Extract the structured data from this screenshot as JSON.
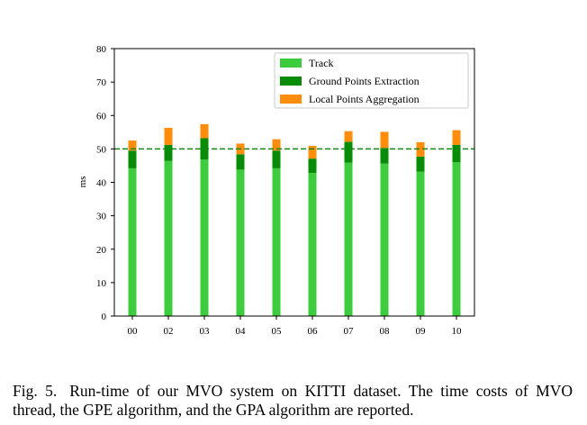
{
  "chart_data": {
    "type": "bar",
    "stacked": true,
    "categories": [
      "00",
      "02",
      "03",
      "04",
      "05",
      "06",
      "07",
      "08",
      "09",
      "10"
    ],
    "series": [
      {
        "name": "Track",
        "color": "#3dcc3d",
        "values": [
          44.2,
          46.4,
          46.8,
          43.8,
          44.2,
          42.8,
          45.9,
          45.6,
          43.2,
          46.0
        ]
      },
      {
        "name": "Ground Points Extraction",
        "color": "#078c07",
        "values": [
          5.3,
          4.8,
          6.4,
          4.6,
          5.3,
          4.3,
          6.2,
          4.7,
          4.5,
          5.2
        ]
      },
      {
        "name": "Local Points Aggregation",
        "color": "#ff8c0a",
        "values": [
          3.0,
          5.1,
          4.2,
          3.2,
          3.4,
          3.8,
          3.2,
          4.8,
          4.3,
          4.4
        ]
      }
    ],
    "reference_line": {
      "value": 50,
      "color": "#118811",
      "style": "dashed"
    },
    "title": "",
    "xlabel": "",
    "ylabel": "ms",
    "ylim": [
      0,
      80
    ],
    "yticks": [
      "0",
      "10",
      "20",
      "30",
      "40",
      "50",
      "60",
      "70",
      "80"
    ],
    "legend_position": "top-right"
  },
  "caption": {
    "label": "Fig. 5.",
    "text": "Run-time of our MVO system on KITTI dataset. The time costs of MVO thread, the GPE algorithm, and the GPA algorithm are reported."
  }
}
